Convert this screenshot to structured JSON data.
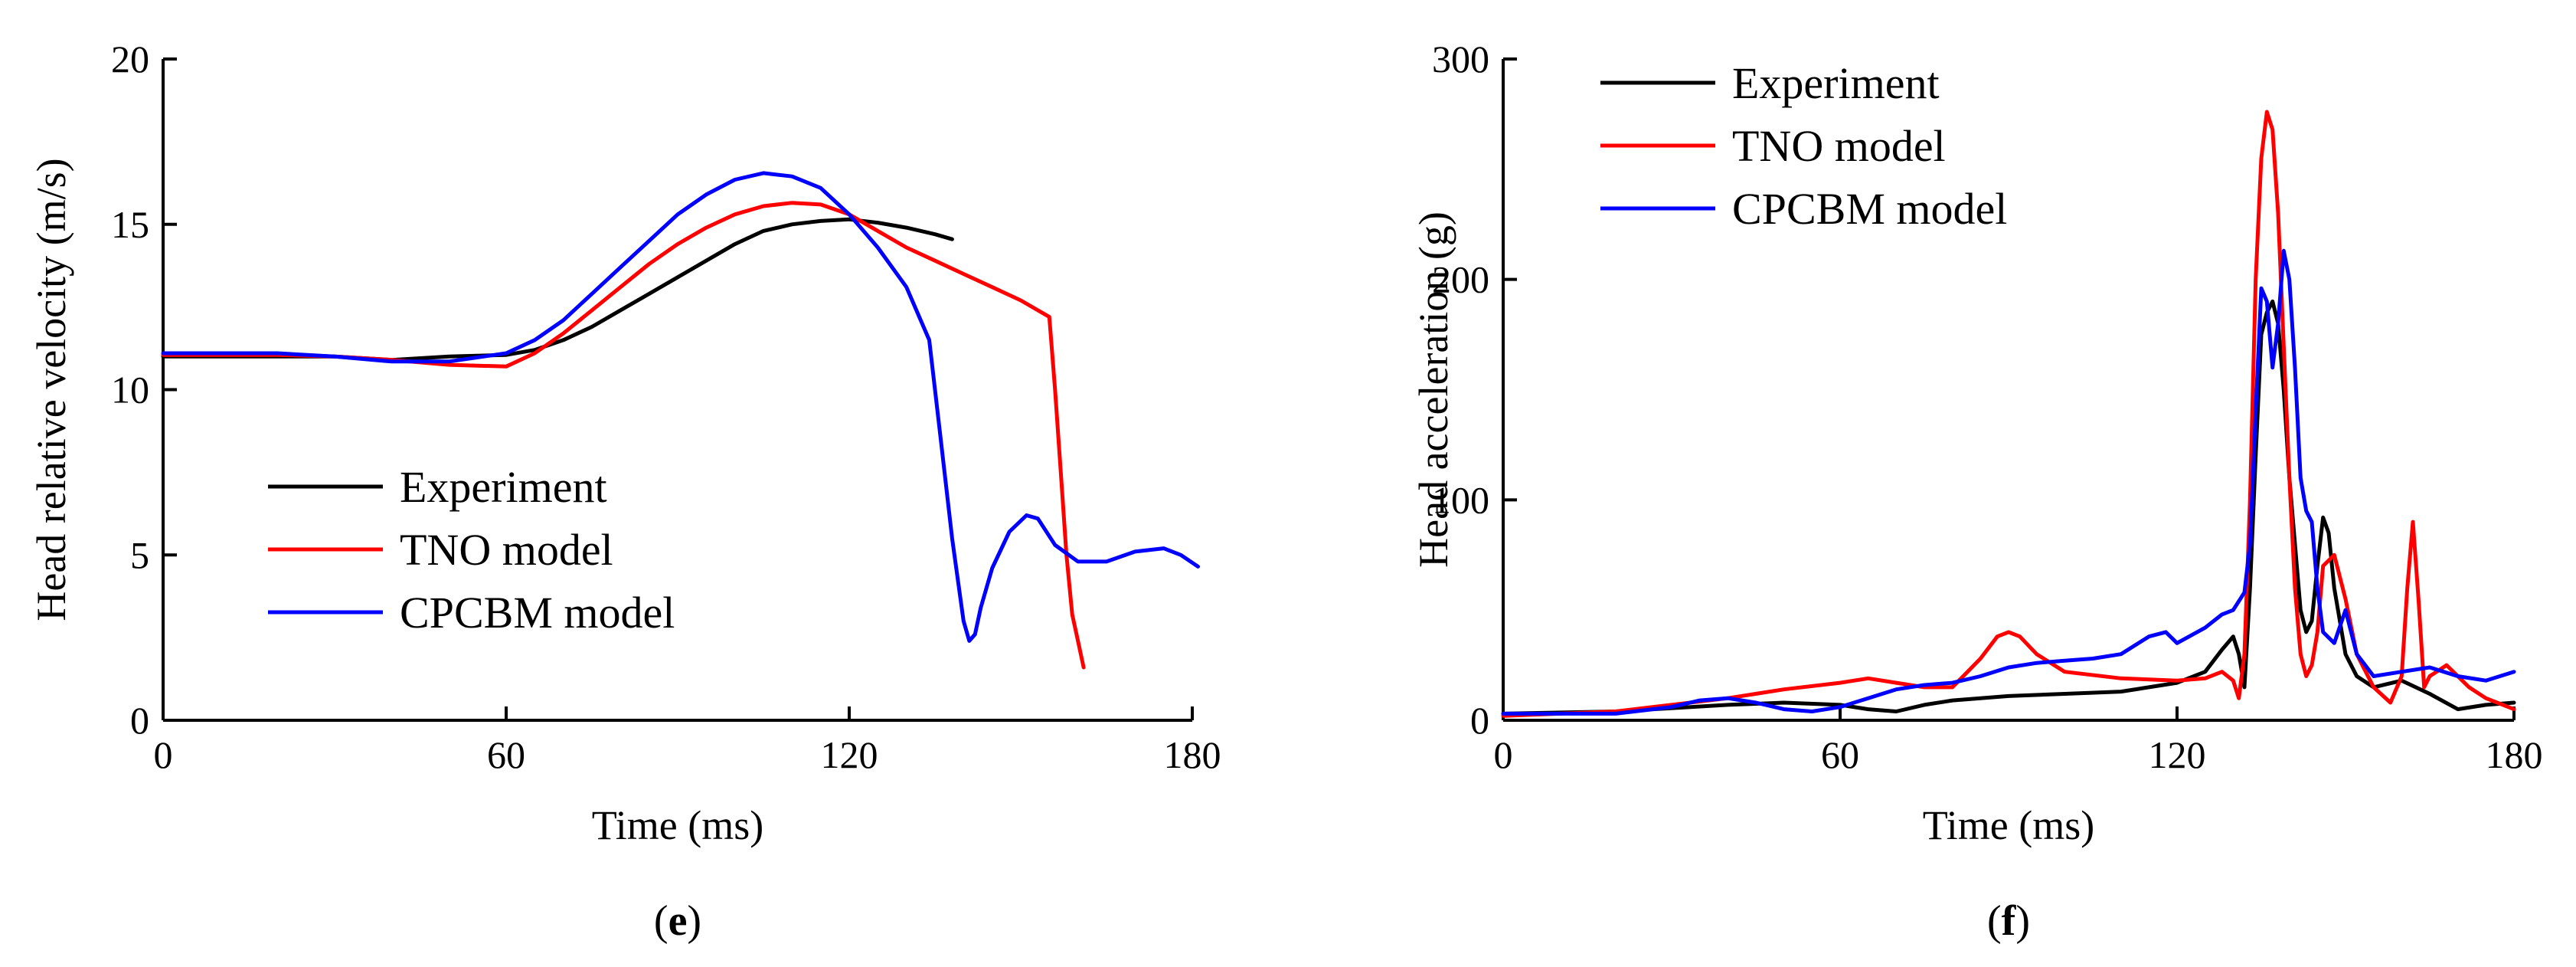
{
  "chart_data": [
    {
      "type": "line",
      "panel": {
        "open": "(",
        "letter": "e",
        "close": ")"
      },
      "xlabel": "Time (ms)",
      "ylabel": "Head relative velocity (m/s)",
      "xlim": [
        0,
        180
      ],
      "ylim": [
        0,
        20
      ],
      "xticks": [
        0,
        60,
        120,
        180
      ],
      "yticks": [
        0,
        5,
        10,
        15,
        20
      ],
      "legend_position": "center-left",
      "series": [
        {
          "name": "Experiment",
          "color": "#000000",
          "x": [
            0,
            10,
            20,
            30,
            40,
            50,
            60,
            65,
            70,
            75,
            80,
            85,
            90,
            95,
            100,
            105,
            110,
            115,
            120,
            125,
            130,
            135,
            138
          ],
          "y": [
            11.0,
            11.0,
            11.0,
            11.0,
            10.9,
            11.0,
            11.05,
            11.2,
            11.5,
            11.9,
            12.4,
            12.9,
            13.4,
            13.9,
            14.4,
            14.8,
            15.0,
            15.1,
            15.15,
            15.05,
            14.9,
            14.7,
            14.55
          ]
        },
        {
          "name": "TNO model",
          "color": "#ff0000",
          "x": [
            0,
            10,
            20,
            30,
            40,
            50,
            60,
            65,
            70,
            75,
            80,
            85,
            90,
            95,
            100,
            105,
            110,
            115,
            120,
            125,
            130,
            135,
            140,
            145,
            150,
            155,
            156,
            157,
            158,
            159,
            160,
            161
          ],
          "y": [
            11.05,
            11.05,
            11.05,
            11.0,
            10.9,
            10.75,
            10.7,
            11.1,
            11.7,
            12.4,
            13.1,
            13.8,
            14.4,
            14.9,
            15.3,
            15.55,
            15.65,
            15.6,
            15.3,
            14.8,
            14.3,
            13.9,
            13.5,
            13.1,
            12.7,
            12.2,
            10.0,
            7.5,
            5.0,
            3.2,
            2.4,
            1.6
          ]
        },
        {
          "name": "CPCBM model",
          "color": "#0000ff",
          "x": [
            0,
            10,
            20,
            30,
            40,
            50,
            60,
            65,
            70,
            75,
            80,
            85,
            90,
            95,
            100,
            105,
            110,
            115,
            120,
            125,
            130,
            134,
            136,
            138,
            140,
            141,
            142,
            143,
            145,
            148,
            151,
            153,
            156,
            160,
            165,
            170,
            175,
            178,
            181
          ],
          "y": [
            11.1,
            11.1,
            11.1,
            11.0,
            10.85,
            10.85,
            11.1,
            11.5,
            12.1,
            12.9,
            13.7,
            14.5,
            15.3,
            15.9,
            16.35,
            16.55,
            16.45,
            16.1,
            15.3,
            14.3,
            13.1,
            11.5,
            8.5,
            5.5,
            3.0,
            2.4,
            2.6,
            3.4,
            4.6,
            5.7,
            6.2,
            6.1,
            5.3,
            4.8,
            4.8,
            5.1,
            5.2,
            5.0,
            4.65
          ]
        }
      ]
    },
    {
      "type": "line",
      "panel": {
        "open": "(",
        "letter": "f",
        "close": ")"
      },
      "xlabel": "Time (ms)",
      "ylabel": "Head acceleration  (g)",
      "xlim": [
        0,
        180
      ],
      "ylim": [
        0,
        300
      ],
      "xticks": [
        0,
        60,
        120,
        180
      ],
      "yticks": [
        0,
        100,
        200,
        300
      ],
      "legend_position": "top-left",
      "series": [
        {
          "name": "Experiment",
          "color": "#000000",
          "x": [
            0,
            20,
            40,
            50,
            60,
            65,
            70,
            75,
            80,
            90,
            100,
            110,
            115,
            120,
            125,
            128,
            130,
            131,
            132,
            133,
            134,
            135,
            136,
            137,
            138,
            139,
            140,
            141,
            142,
            143,
            144,
            145,
            146,
            147,
            148,
            150,
            152,
            155,
            160,
            165,
            170,
            175,
            180
          ],
          "y": [
            3,
            4,
            7,
            8,
            7,
            5,
            4,
            7,
            9,
            11,
            12,
            13,
            15,
            17,
            22,
            32,
            38,
            30,
            15,
            60,
            120,
            175,
            185,
            190,
            180,
            150,
            110,
            80,
            50,
            40,
            45,
            70,
            92,
            85,
            60,
            30,
            20,
            15,
            18,
            12,
            5,
            7,
            8
          ]
        },
        {
          "name": "TNO model",
          "color": "#ff0000",
          "x": [
            0,
            20,
            40,
            50,
            60,
            65,
            70,
            75,
            80,
            85,
            88,
            90,
            92,
            95,
            100,
            110,
            120,
            125,
            128,
            130,
            131,
            132,
            133,
            134,
            135,
            136,
            137,
            138,
            139,
            140,
            141,
            142,
            143,
            144,
            145,
            146,
            148,
            150,
            152,
            155,
            158,
            160,
            161,
            162,
            163,
            164,
            165,
            168,
            170,
            172,
            175,
            180
          ],
          "y": [
            2,
            4,
            10,
            14,
            17,
            19,
            17,
            15,
            15,
            28,
            38,
            40,
            38,
            30,
            22,
            19,
            18,
            19,
            22,
            18,
            10,
            30,
            100,
            200,
            255,
            276,
            268,
            230,
            170,
            110,
            60,
            30,
            20,
            25,
            40,
            70,
            75,
            55,
            30,
            15,
            8,
            20,
            60,
            90,
            55,
            15,
            20,
            25,
            20,
            15,
            10,
            5
          ]
        },
        {
          "name": "CPCBM model",
          "color": "#0000ff",
          "x": [
            0,
            10,
            20,
            30,
            35,
            40,
            45,
            50,
            55,
            60,
            65,
            70,
            75,
            80,
            85,
            90,
            95,
            100,
            105,
            110,
            115,
            118,
            120,
            125,
            128,
            130,
            132,
            133,
            134,
            135,
            136,
            137,
            138,
            139,
            140,
            141,
            142,
            143,
            144,
            145,
            146,
            148,
            150,
            152,
            155,
            160,
            165,
            170,
            175,
            180
          ],
          "y": [
            3,
            3,
            3,
            6,
            9,
            10,
            8,
            5,
            4,
            6,
            10,
            14,
            16,
            17,
            20,
            24,
            26,
            27,
            28,
            30,
            38,
            40,
            35,
            42,
            48,
            50,
            58,
            80,
            140,
            196,
            190,
            160,
            180,
            213,
            200,
            160,
            110,
            95,
            90,
            60,
            40,
            35,
            50,
            30,
            20,
            22,
            24,
            20,
            18,
            22
          ]
        }
      ]
    }
  ]
}
